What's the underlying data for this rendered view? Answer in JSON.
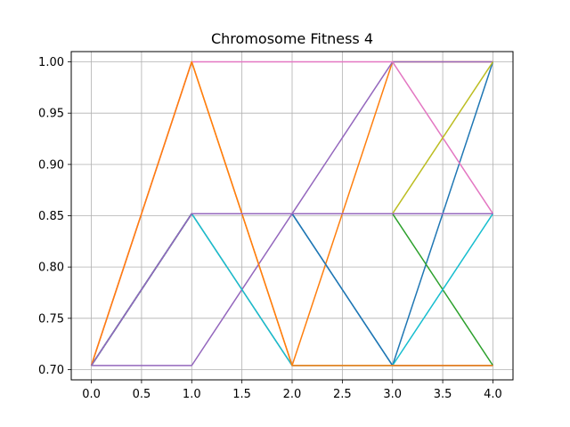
{
  "chart_data": {
    "type": "line",
    "title": "Chromosome Fitness 4",
    "xlabel": "",
    "ylabel": "",
    "x": [
      0,
      1,
      2,
      3,
      4
    ],
    "xlim": [
      -0.2,
      4.2
    ],
    "ylim": [
      0.69,
      1.01
    ],
    "x_ticks": [
      "0.0",
      "0.5",
      "1.0",
      "1.5",
      "2.0",
      "2.5",
      "3.0",
      "3.5",
      "4.0"
    ],
    "y_ticks": [
      "0.70",
      "0.75",
      "0.80",
      "0.85",
      "0.90",
      "0.95",
      "1.00"
    ],
    "grid": true,
    "series": [
      {
        "color": "#1f77b4",
        "values": [
          0.704,
          0.852,
          0.852,
          0.704,
          1.0
        ]
      },
      {
        "color": "#ff7f0e",
        "values": [
          0.704,
          1.0,
          0.704,
          1.0,
          1.0
        ]
      },
      {
        "color": "#2ca02c",
        "values": [
          0.704,
          0.852,
          0.852,
          0.852,
          0.704
        ]
      },
      {
        "color": "#d62728",
        "values": [
          0.704,
          0.852,
          0.852,
          0.852,
          0.852
        ]
      },
      {
        "color": "#9467bd",
        "values": [
          0.704,
          0.704,
          0.852,
          1.0,
          1.0
        ]
      },
      {
        "color": "#8c564b",
        "values": [
          0.704,
          0.852,
          0.852,
          0.852,
          0.852
        ]
      },
      {
        "color": "#e377c2",
        "values": [
          0.704,
          1.0,
          1.0,
          1.0,
          0.852
        ]
      },
      {
        "color": "#7f7f7f",
        "values": [
          0.704,
          0.852,
          0.704,
          0.704,
          0.704
        ]
      },
      {
        "color": "#bcbd22",
        "values": [
          0.704,
          0.852,
          0.852,
          0.852,
          1.0
        ]
      },
      {
        "color": "#17becf",
        "values": [
          0.704,
          0.852,
          0.704,
          0.704,
          0.852
        ]
      },
      {
        "color": "#1f77b4",
        "values": [
          0.704,
          0.852,
          0.852,
          0.704,
          0.704
        ]
      },
      {
        "color": "#ff7f0e",
        "values": [
          0.704,
          1.0,
          0.704,
          0.704,
          0.704
        ]
      },
      {
        "color": "#9467bd",
        "values": [
          0.704,
          0.852,
          0.852,
          0.852,
          0.852
        ]
      }
    ]
  }
}
